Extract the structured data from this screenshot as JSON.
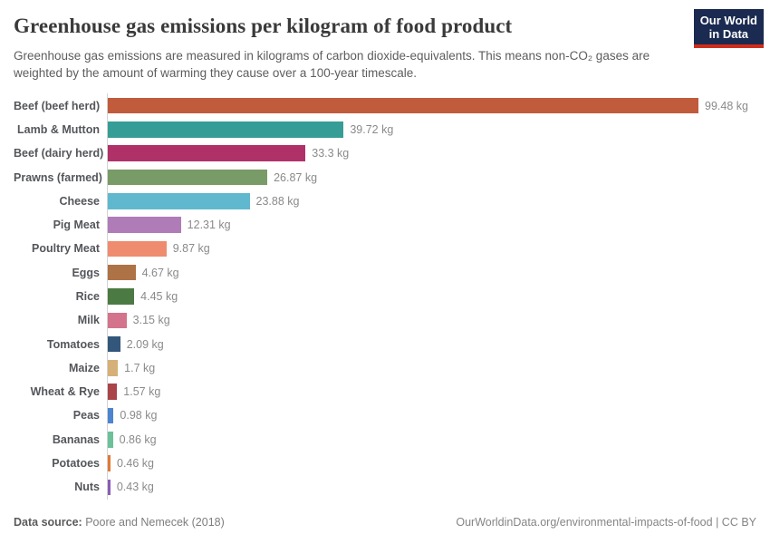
{
  "header": {
    "title": "Greenhouse gas emissions per kilogram of food product",
    "subtitle": "Greenhouse gas emissions are measured in kilograms of carbon dioxide-equivalents. This means non-CO₂ gases are weighted by the amount of warming they cause over a 100-year timescale.",
    "logo": {
      "line1": "Our World",
      "line2": "in Data",
      "bg_color": "#1a2a50",
      "stripe_color": "#cf2d1c"
    }
  },
  "chart_data": {
    "type": "bar",
    "orientation": "horizontal",
    "title": "Greenhouse gas emissions per kilogram of food product",
    "xlabel": "",
    "ylabel": "",
    "xlim": [
      0,
      100
    ],
    "grid": false,
    "legend": "none",
    "value_suffix": " kg",
    "categories": [
      "Beef (beef herd)",
      "Lamb & Mutton",
      "Beef (dairy herd)",
      "Prawns (farmed)",
      "Cheese",
      "Pig Meat",
      "Poultry Meat",
      "Eggs",
      "Rice",
      "Milk",
      "Tomatoes",
      "Maize",
      "Wheat & Rye",
      "Peas",
      "Bananas",
      "Potatoes",
      "Nuts"
    ],
    "values": [
      99.48,
      39.72,
      33.3,
      26.87,
      23.88,
      12.31,
      9.87,
      4.67,
      4.45,
      3.15,
      2.09,
      1.7,
      1.57,
      0.98,
      0.86,
      0.46,
      0.43
    ],
    "value_labels": [
      "99.48 kg",
      "39.72 kg",
      "33.3 kg",
      "26.87 kg",
      "23.88 kg",
      "12.31 kg",
      "9.87 kg",
      "4.67 kg",
      "4.45 kg",
      "3.15 kg",
      "2.09 kg",
      "1.7 kg",
      "1.57 kg",
      "0.98 kg",
      "0.86 kg",
      "0.46 kg",
      "0.43 kg"
    ],
    "colors": [
      "#C05B3C",
      "#359D95",
      "#AF3168",
      "#799B67",
      "#60B8CE",
      "#B07CB8",
      "#EF8C6F",
      "#AE7247",
      "#4C7A43",
      "#D4738C",
      "#33577B",
      "#D5B078",
      "#A94449",
      "#4E84CE",
      "#6EC09A",
      "#DF7A36",
      "#8A5CB6"
    ]
  },
  "footer": {
    "datasource_label": "Data source:",
    "datasource_value": "Poore and Nemecek (2018)",
    "link": "OurWorldinData.org/environmental-impacts-of-food",
    "separator": " | ",
    "license": "CC BY"
  }
}
